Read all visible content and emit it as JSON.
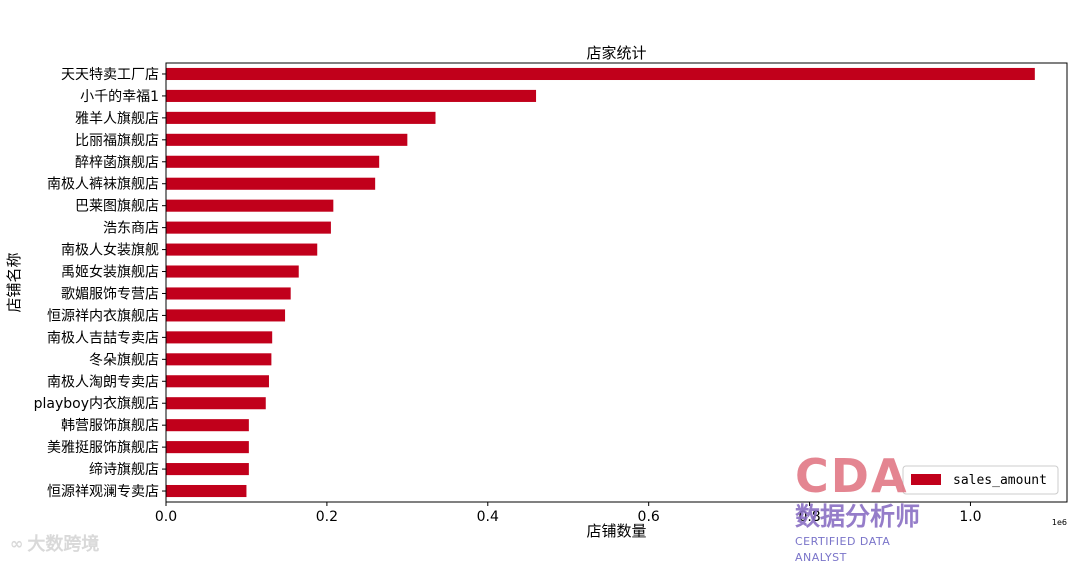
{
  "chart_data": {
    "type": "bar",
    "orientation": "horizontal",
    "title": "店家统计",
    "xlabel": "店铺数量",
    "ylabel": "店铺名称",
    "x_offset_text": "1e6",
    "xlim": [
      0,
      1.12
    ],
    "xticks": [
      "0.0",
      "0.2",
      "0.4",
      "0.6",
      "0.8",
      "1.0"
    ],
    "xtick_values": [
      0.0,
      0.2,
      0.4,
      0.6,
      0.8,
      1.0
    ],
    "grid": false,
    "legend_position": "lower-right",
    "bar_color": "#c1001b",
    "categories": [
      "天天特卖工厂店",
      "小千的幸福1",
      "雅羊人旗舰店",
      "比丽福旗舰店",
      "醉梓菡旗舰店",
      "南极人裤袜旗舰店",
      "巴莱图旗舰店",
      "浩东商店",
      "南极人女装旗舰",
      "禹姬女装旗舰店",
      "歌媚服饰专营店",
      "恒源祥内衣旗舰店",
      "南极人吉喆专卖店",
      "冬朵旗舰店",
      "南极人淘朗专卖店",
      "playboy内衣旗舰店",
      "韩营服饰旗舰店",
      "美雅挺服饰旗舰店",
      "缔诗旗舰店",
      "恒源祥观澜专卖店"
    ],
    "series": [
      {
        "name": "sales_amount",
        "values": [
          1.08,
          0.46,
          0.335,
          0.3,
          0.265,
          0.26,
          0.208,
          0.205,
          0.188,
          0.165,
          0.155,
          0.148,
          0.132,
          0.131,
          0.128,
          0.124,
          0.103,
          0.103,
          0.103,
          0.1
        ]
      }
    ]
  },
  "watermark_left": {
    "logo": "∞",
    "text": "大数跨境"
  },
  "watermark_cda": {
    "letters": "CDA",
    "cn": "数据分析师",
    "en": "CERTIFIED DATA ANALYST"
  }
}
